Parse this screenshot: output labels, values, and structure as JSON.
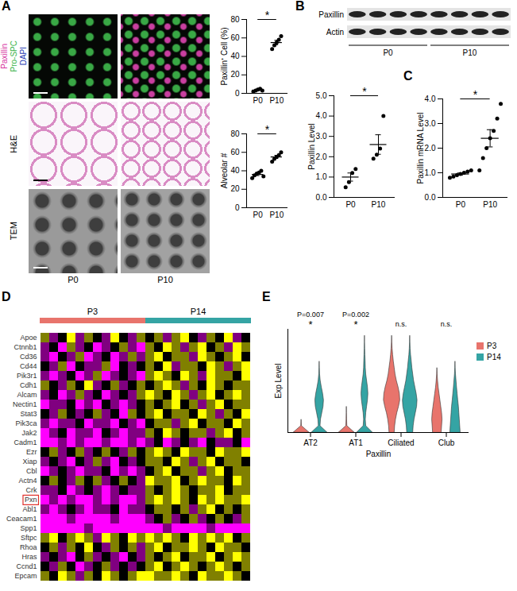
{
  "chart_data": [
    {
      "type": "image_grid",
      "panel": "A",
      "channels": [
        {
          "text": "Paxillin",
          "color": "#d6339e"
        },
        {
          "text": "Pro-SPC",
          "color": "#3cb44b"
        },
        {
          "text": "DAPI",
          "color": "#2a3fb5"
        }
      ],
      "row_labels": [
        null,
        "H&E",
        "TEM"
      ],
      "columns": [
        "P0",
        "P10"
      ]
    },
    {
      "type": "dot",
      "categories": [
        "P0",
        "P10"
      ],
      "points": [
        [
          2,
          3,
          4,
          5,
          3
        ],
        [
          48,
          52,
          55,
          58,
          62
        ]
      ],
      "mean": [
        3.4,
        55
      ],
      "sem": [
        0.5,
        2.4
      ],
      "ylabel": "Paxillin⁺ Cell (%)",
      "ylim": [
        0,
        80
      ],
      "yticks": [
        0,
        20,
        40,
        60,
        80
      ],
      "annotations": [
        "*"
      ],
      "color": "#000000"
    },
    {
      "type": "dot",
      "categories": [
        "P0",
        "P10"
      ],
      "points": [
        [
          32,
          35,
          37,
          38,
          40,
          34
        ],
        [
          50,
          53,
          55,
          57,
          60
        ]
      ],
      "mean": [
        36,
        55
      ],
      "sem": [
        1.2,
        1.7
      ],
      "ylabel": "Alveolar #",
      "ylim": [
        0,
        80
      ],
      "yticks": [
        0,
        20,
        40,
        60,
        80
      ],
      "annotations": [
        "*"
      ],
      "color": "#000000"
    },
    {
      "type": "blot",
      "panel": "B",
      "rows": [
        "Paxillin",
        "Actin"
      ],
      "groups": [
        {
          "name": "P0",
          "lanes": 4
        },
        {
          "name": "P10",
          "lanes": 4
        }
      ]
    },
    {
      "type": "dot",
      "categories": [
        "P0",
        "P10"
      ],
      "points": [
        [
          0.5,
          0.75,
          1.2,
          1.4
        ],
        [
          1.9,
          2.1,
          2.4,
          4.0
        ]
      ],
      "mean": [
        1.0,
        2.6
      ],
      "sem": [
        0.2,
        0.48
      ],
      "ylabel": "Paxillin Level",
      "ylim": [
        0,
        5
      ],
      "yticks": [
        0,
        1,
        2,
        3,
        4,
        5
      ],
      "annotations": [
        "*"
      ],
      "color": "#000000"
    },
    {
      "type": "dot",
      "panel": "C",
      "categories": [
        "P0",
        "P10"
      ],
      "points": [
        [
          0.8,
          0.85,
          0.9,
          0.95,
          1.0,
          1.05,
          1.1
        ],
        [
          1.1,
          1.6,
          2.0,
          2.4,
          2.7,
          3.2,
          3.8
        ]
      ],
      "mean": [
        0.95,
        2.4
      ],
      "sem": [
        0.04,
        0.35
      ],
      "ylabel": "Paxillin mRNA Level",
      "ylim": [
        0,
        4
      ],
      "yticks": [
        0,
        1,
        2,
        3,
        4
      ],
      "annotations": [
        "*"
      ],
      "color": "#000000"
    },
    {
      "type": "heatmap",
      "panel": "D",
      "groups": [
        {
          "name": "P3",
          "color": "#e8746c",
          "count": 12
        },
        {
          "name": "P14",
          "color": "#35a4a4",
          "count": 12
        }
      ],
      "rows": [
        "Apoe",
        "Ctnnb1",
        "Cd36",
        "Cd44",
        "Pik3r1",
        "Cdh1",
        "Alcam",
        "Nectin1",
        "Stat3",
        "Pik3ca",
        "Jak2",
        "Cadm1",
        "Ezr",
        "Xiap",
        "Cbl",
        "Actn4",
        "Crk",
        "Pxn",
        "Abl1",
        "Ceacam1",
        "Spp1",
        "Sftpc",
        "Rhoa",
        "Hras",
        "Ccnd1",
        "Epcam"
      ],
      "values": [
        [
          1,
          -1,
          0,
          2,
          -1,
          1,
          0,
          -1,
          2,
          0,
          -1,
          1,
          0,
          1,
          -1,
          1,
          2,
          0,
          -1,
          1,
          0,
          2,
          -1,
          0
        ],
        [
          -1,
          0,
          -2,
          1,
          -1,
          0,
          -2,
          -1,
          0,
          1,
          -1,
          -2,
          1,
          0,
          2,
          1,
          -1,
          1,
          2,
          0,
          1,
          -1,
          2,
          1
        ],
        [
          -1,
          -2,
          0,
          -1,
          1,
          -2,
          -1,
          0,
          -2,
          -1,
          1,
          -1,
          1,
          2,
          0,
          1,
          1,
          -1,
          2,
          1,
          0,
          1,
          2,
          0
        ],
        [
          0,
          -1,
          1,
          -2,
          0,
          -1,
          -1,
          1,
          -2,
          0,
          -1,
          0,
          1,
          0,
          2,
          -1,
          1,
          1,
          0,
          2,
          1,
          -1,
          1,
          2
        ],
        [
          -1,
          -2,
          -1,
          0,
          -2,
          -1,
          1,
          -2,
          -1,
          0,
          -1,
          -2,
          1,
          2,
          1,
          0,
          2,
          1,
          -1,
          2,
          1,
          1,
          0,
          2
        ],
        [
          1,
          0,
          -1,
          1,
          0,
          2,
          -1,
          0,
          1,
          -1,
          0,
          1,
          0,
          1,
          2,
          1,
          -1,
          1,
          0,
          2,
          1,
          0,
          1,
          1
        ],
        [
          -1,
          0,
          -2,
          -1,
          1,
          -1,
          0,
          -2,
          -1,
          0,
          -1,
          1,
          2,
          1,
          0,
          2,
          1,
          -1,
          1,
          2,
          0,
          1,
          2,
          1
        ],
        [
          -2,
          -1,
          -1,
          0,
          -2,
          -1,
          -2,
          0,
          -1,
          -2,
          -1,
          0,
          1,
          0,
          1,
          2,
          0,
          1,
          -1,
          1,
          2,
          0,
          1,
          1
        ],
        [
          0,
          -1,
          1,
          0,
          -1,
          0,
          1,
          -1,
          0,
          -2,
          1,
          0,
          1,
          2,
          0,
          1,
          1,
          0,
          2,
          1,
          -1,
          1,
          0,
          2
        ],
        [
          -1,
          -2,
          -1,
          -1,
          0,
          -2,
          -1,
          -1,
          -2,
          0,
          -1,
          -2,
          0,
          1,
          1,
          -1,
          1,
          2,
          0,
          1,
          1,
          0,
          2,
          1
        ],
        [
          -2,
          -1,
          0,
          -2,
          -1,
          -1,
          -2,
          0,
          -1,
          -2,
          -1,
          -1,
          1,
          0,
          2,
          1,
          0,
          1,
          1,
          -1,
          1,
          2,
          0,
          1
        ],
        [
          -2,
          -2,
          -1,
          -2,
          -1,
          -2,
          -2,
          -1,
          -2,
          -2,
          -1,
          -2,
          -1,
          0,
          -2,
          -1,
          0,
          -1,
          -2,
          0,
          -1,
          -1,
          0,
          -2
        ],
        [
          0,
          1,
          -1,
          0,
          1,
          -1,
          0,
          1,
          0,
          -1,
          1,
          0,
          1,
          2,
          1,
          0,
          2,
          1,
          1,
          0,
          2,
          1,
          1,
          2
        ],
        [
          -1,
          0,
          -1,
          -2,
          0,
          -1,
          1,
          -1,
          -2,
          0,
          -1,
          0,
          1,
          1,
          0,
          2,
          1,
          -1,
          1,
          2,
          0,
          1,
          1,
          0
        ],
        [
          -2,
          -1,
          0,
          -1,
          -2,
          -1,
          -1,
          0,
          -2,
          -1,
          -2,
          -1,
          0,
          1,
          2,
          0,
          1,
          1,
          -1,
          1,
          2,
          0,
          1,
          1
        ],
        [
          0,
          1,
          0,
          -1,
          1,
          0,
          1,
          -1,
          0,
          1,
          0,
          -1,
          2,
          1,
          1,
          2,
          0,
          1,
          2,
          1,
          1,
          0,
          2,
          1
        ],
        [
          -1,
          -1,
          0,
          -2,
          -1,
          0,
          -1,
          -2,
          -1,
          0,
          -1,
          -1,
          1,
          0,
          1,
          2,
          1,
          0,
          1,
          1,
          2,
          0,
          1,
          1
        ],
        [
          -2,
          -1,
          -2,
          -1,
          -2,
          -2,
          -1,
          -2,
          -1,
          -2,
          -2,
          -1,
          1,
          2,
          1,
          2,
          1,
          0,
          2,
          1,
          2,
          1,
          1,
          2
        ],
        [
          -1,
          -2,
          -1,
          0,
          -1,
          -2,
          -1,
          -1,
          0,
          -2,
          -1,
          -1,
          0,
          1,
          1,
          0,
          1,
          -1,
          1,
          2,
          0,
          1,
          0,
          1
        ],
        [
          -2,
          -2,
          -2,
          -1,
          -2,
          -2,
          -2,
          -2,
          -1,
          -2,
          -2,
          -2,
          -1,
          0,
          1,
          -1,
          0,
          1,
          -1,
          0,
          1,
          0,
          -1,
          1
        ],
        [
          -2,
          -2,
          -2,
          -2,
          -2,
          -1,
          -2,
          -2,
          -2,
          -2,
          -2,
          -2,
          -2,
          -2,
          -1,
          -2,
          -2,
          -2,
          -2,
          -1,
          -2,
          -2,
          -2,
          -2
        ],
        [
          1,
          2,
          0,
          1,
          2,
          1,
          -1,
          2,
          1,
          0,
          2,
          1,
          2,
          1,
          2,
          1,
          0,
          2,
          1,
          2,
          1,
          2,
          0,
          1
        ],
        [
          0,
          1,
          -1,
          1,
          0,
          2,
          0,
          -1,
          1,
          0,
          1,
          -1,
          1,
          2,
          0,
          1,
          1,
          2,
          1,
          0,
          2,
          1,
          1,
          0
        ],
        [
          -1,
          0,
          -1,
          -2,
          0,
          1,
          -1,
          0,
          -1,
          -2,
          0,
          -1,
          1,
          0,
          1,
          2,
          0,
          1,
          1,
          2,
          0,
          1,
          2,
          1
        ],
        [
          0,
          -1,
          1,
          0,
          -2,
          -1,
          0,
          1,
          -1,
          0,
          -1,
          0,
          1,
          2,
          0,
          1,
          2,
          1,
          0,
          1,
          2,
          1,
          0,
          1
        ],
        [
          1,
          0,
          2,
          1,
          -1,
          1,
          0,
          2,
          1,
          0,
          1,
          2,
          2,
          1,
          1,
          2,
          1,
          0,
          2,
          1,
          1,
          2,
          1,
          0
        ]
      ],
      "color_range": [
        -2,
        2
      ],
      "annotations": [
        {
          "row": "Pxn",
          "color": "#e0312b"
        }
      ]
    },
    {
      "type": "violin",
      "panel": "E",
      "categories": [
        "AT2",
        "AT1",
        "Ciliated",
        "Club"
      ],
      "xlabel": "Paxillin",
      "ylabel": "Exp Level",
      "ylim": [
        0,
        4
      ],
      "yticks": [],
      "tick_labels": "x",
      "levels": [
        0,
        0.25,
        0.5,
        0.75,
        1,
        1.25,
        1.5,
        1.75,
        2,
        2.25,
        2.5,
        2.75,
        3,
        3.25,
        3.5,
        3.75
      ],
      "series": [
        {
          "name": "P3",
          "color": "#e8746c",
          "widths": [
            [
              0.9,
              0.04,
              0,
              0,
              0,
              0,
              0,
              0,
              0,
              0,
              0,
              0,
              0,
              0,
              0,
              0
            ],
            [
              0.9,
              0.06,
              0.03,
              0.01,
              0,
              0,
              0,
              0,
              0,
              0,
              0,
              0,
              0,
              0,
              0,
              0
            ],
            [
              0.3,
              0.35,
              0.45,
              0.6,
              0.8,
              0.95,
              0.9,
              0.75,
              0.55,
              0.4,
              0.3,
              0.2,
              0.12,
              0.06,
              0.02,
              0
            ],
            [
              0.5,
              0.55,
              0.6,
              0.55,
              0.45,
              0.35,
              0.25,
              0.15,
              0.08,
              0.03,
              0,
              0,
              0,
              0,
              0,
              0
            ]
          ]
        },
        {
          "name": "P14",
          "color": "#35a4a4",
          "widths": [
            [
              0.9,
              0.1,
              0.15,
              0.3,
              0.45,
              0.5,
              0.4,
              0.25,
              0.12,
              0.05,
              0.02,
              0,
              0,
              0,
              0,
              0
            ],
            [
              0.9,
              0.15,
              0.1,
              0.15,
              0.25,
              0.35,
              0.4,
              0.35,
              0.25,
              0.15,
              0.1,
              0.08,
              0.05,
              0.03,
              0.01,
              0
            ],
            [
              0.35,
              0.4,
              0.5,
              0.65,
              0.8,
              0.85,
              0.75,
              0.6,
              0.45,
              0.35,
              0.25,
              0.18,
              0.1,
              0.05,
              0.02,
              0
            ],
            [
              0.6,
              0.55,
              0.5,
              0.45,
              0.4,
              0.32,
              0.25,
              0.18,
              0.12,
              0.06,
              0.02,
              0,
              0,
              0,
              0,
              0
            ]
          ]
        }
      ],
      "annotations": [
        {
          "category": "AT2",
          "text": "P=0.007",
          "mark": "*"
        },
        {
          "category": "AT1",
          "text": "P=0.002",
          "mark": "*"
        },
        {
          "category": "Ciliated",
          "text": "n.s."
        },
        {
          "category": "Club",
          "text": "n.s."
        }
      ],
      "legend": "right"
    }
  ]
}
